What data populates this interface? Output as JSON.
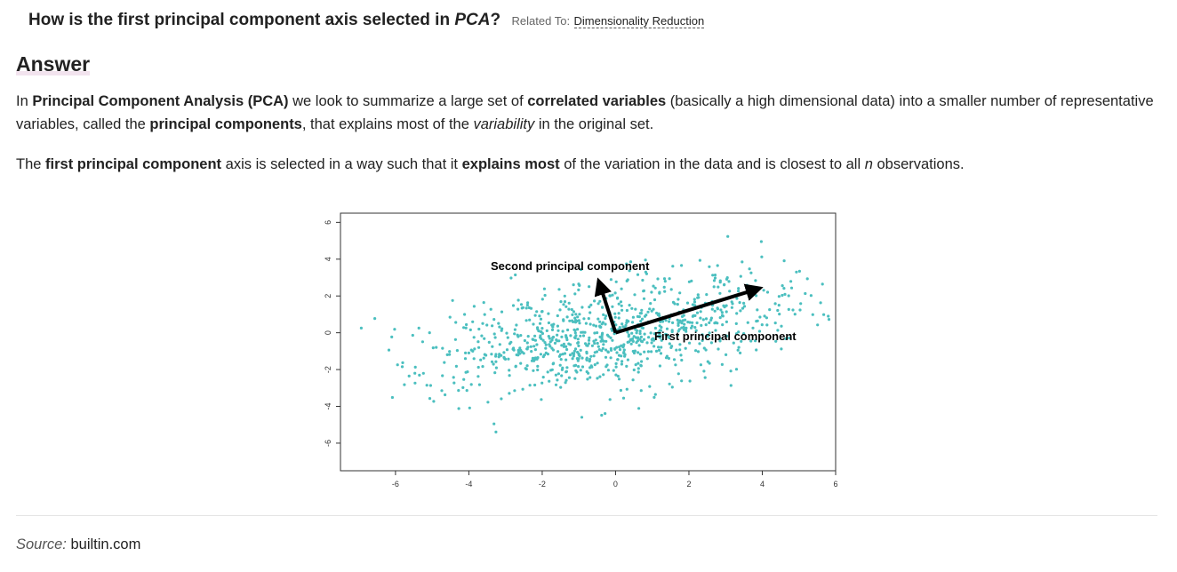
{
  "question": {
    "text_before": "How is the first principal component axis selected in ",
    "text_em": "PCA",
    "text_after": "?",
    "related_label": "Related To:",
    "related_link": "Dimensionality Reduction"
  },
  "answer_heading": "Answer",
  "paragraph1": {
    "s1": "In ",
    "b1": "Principal Component Analysis (PCA)",
    "s2": " we look to summarize a large set of ",
    "b2": "correlated variables",
    "s3": " (basically a high dimensional data) into a smaller number of representative variables, called the ",
    "b3": "principal components",
    "s4": ", that explains most of the ",
    "i1": "variability",
    "s5": " in the original set."
  },
  "paragraph2": {
    "s1": "The ",
    "b1": "first principal component",
    "s2": " axis is selected in a way such that it ",
    "b2": "explains most",
    "s3": " of the variation in the data and is closest to all ",
    "i1": "n",
    "s4": " observations."
  },
  "source": {
    "label": "Source:",
    "value": "builtin.com"
  },
  "chart_data": {
    "type": "scatter",
    "xlim": [
      -7.5,
      6
    ],
    "ylim": [
      -7.5,
      6.5
    ],
    "x_ticks": [
      "-6",
      "-4",
      "-2",
      "0",
      "2",
      "4",
      "6"
    ],
    "y_ticks": [
      "-6",
      "-4",
      "-2",
      "0",
      "2",
      "4",
      "6"
    ],
    "point_color": "#4bbfbf",
    "point_count": 950,
    "spread": {
      "center": [
        0,
        0
      ],
      "sd_major": 2.6,
      "sd_minor": 1.4,
      "angle_deg": 22
    },
    "annotations": [
      {
        "text": "Second principal component",
        "arrow_from": [
          0,
          0
        ],
        "arrow_to": [
          -0.45,
          2.75
        ]
      },
      {
        "text": "First principal component",
        "arrow_from": [
          0,
          0
        ],
        "arrow_to": [
          3.9,
          2.4
        ]
      }
    ],
    "grid": false
  }
}
